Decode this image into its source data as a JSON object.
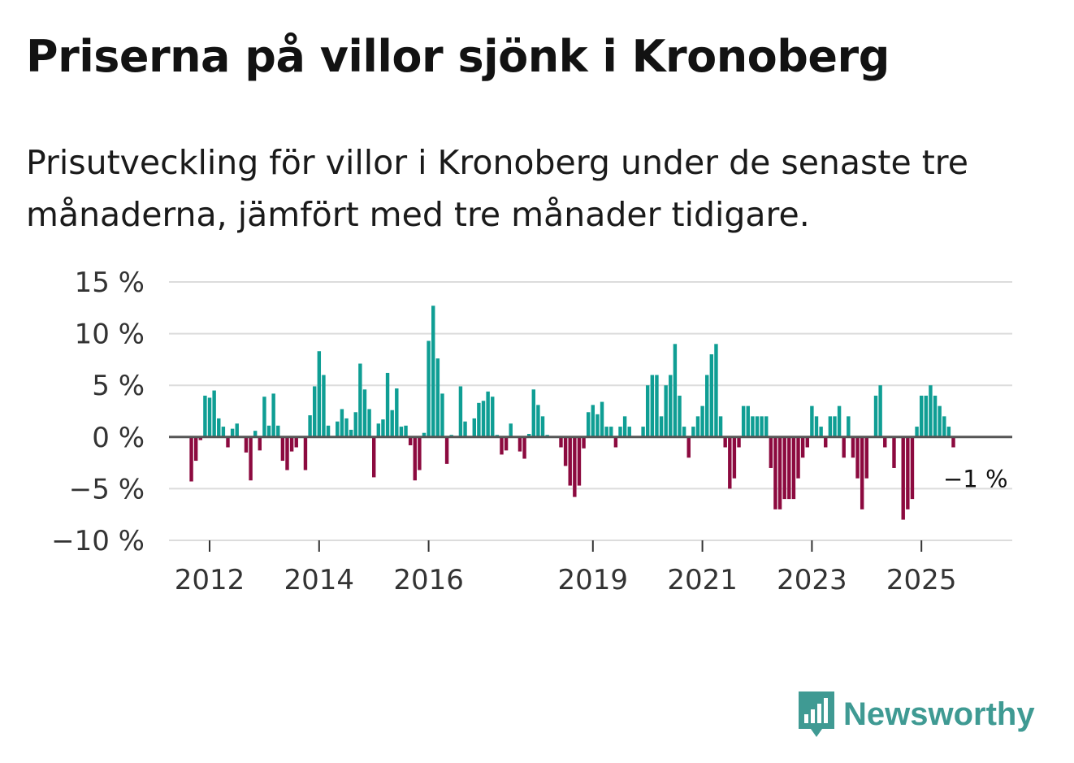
{
  "header": {
    "title": "Priserna på villor sjönk i Kronoberg",
    "subtitle": "Prisutveckling för villor i Kronoberg under de senaste tre månaderna, jämfört med tre månader tidigare."
  },
  "brand": {
    "name": "Newsworthy",
    "logo_icon": "bar-chart-badge-icon"
  },
  "colors": {
    "positive": "#0f9e94",
    "negative": "#8c0a3f",
    "grid": "#dcdcdc",
    "zero": "#555555",
    "brand": "#3f9a93"
  },
  "chart_data": {
    "type": "bar",
    "title": "Priserna på villor sjönk i Kronoberg",
    "xlabel": "",
    "ylabel": "",
    "ylim": [
      -10,
      15
    ],
    "yticks": [
      -10,
      -5,
      0,
      5,
      10,
      15
    ],
    "ytick_labels": [
      "−10 %",
      "−5 %",
      "0 %",
      "5 %",
      "10 %",
      "15 %"
    ],
    "xticks": [
      2012,
      2014,
      2016,
      2019,
      2021,
      2023,
      2025
    ],
    "xtick_labels": [
      "2012",
      "2014",
      "2016",
      "2019",
      "2021",
      "2023",
      "2025"
    ],
    "x_start": 2011.667,
    "x_step": 0.08333,
    "last_value_label": "−1 %",
    "values": [
      -4.3,
      -2.3,
      -0.3,
      4.0,
      3.8,
      4.5,
      1.8,
      1.0,
      -1.0,
      0.8,
      1.3,
      0.0,
      -1.5,
      -4.2,
      0.6,
      -1.3,
      3.9,
      1.1,
      4.2,
      1.1,
      -2.3,
      -3.2,
      -1.4,
      -1.0,
      0.0,
      -3.2,
      2.1,
      4.9,
      8.3,
      6.0,
      1.1,
      0.0,
      1.5,
      2.7,
      1.8,
      0.7,
      2.4,
      7.1,
      4.6,
      2.7,
      -3.9,
      1.3,
      1.7,
      6.2,
      2.6,
      4.7,
      1.0,
      1.1,
      -0.8,
      -4.2,
      -3.2,
      0.4,
      9.3,
      12.7,
      7.6,
      4.2,
      -2.6,
      0.2,
      0.0,
      4.9,
      1.5,
      0.0,
      1.8,
      3.3,
      3.5,
      4.4,
      3.9,
      0.2,
      -1.7,
      -1.3,
      1.3,
      0.0,
      -1.4,
      -2.1,
      0.3,
      4.6,
      3.1,
      2.0,
      0.2,
      0.1,
      0.0,
      -1.0,
      -2.8,
      -4.7,
      -5.8,
      -4.7,
      -1.1,
      2.4,
      3.1,
      2.2,
      3.4,
      1.0,
      1.0,
      -1.0,
      1.0,
      2.0,
      1.0,
      0.0,
      0.0,
      1.0,
      5.0,
      6.0,
      6.0,
      2.0,
      5.0,
      6.0,
      9.0,
      4.0,
      1.0,
      -2.0,
      1.0,
      2.0,
      3.0,
      6.0,
      8.0,
      9.0,
      2.0,
      -1.0,
      -5.0,
      -4.0,
      -1.0,
      3.0,
      3.0,
      2.0,
      2.0,
      2.0,
      2.0,
      -3.0,
      -7.0,
      -7.0,
      -6.0,
      -6.0,
      -6.0,
      -4.0,
      -2.0,
      -1.0,
      3.0,
      2.0,
      1.0,
      -1.0,
      2.0,
      2.0,
      3.0,
      -2.0,
      2.0,
      -2.0,
      -4.0,
      -7.0,
      -4.0,
      0.0,
      4.0,
      5.0,
      -1.0,
      0.0,
      -3.0,
      0.0,
      -8.0,
      -7.0,
      -6.0,
      1.0,
      4.0,
      4.0,
      5.0,
      4.0,
      3.0,
      2.0,
      1.0,
      -1.0
    ]
  }
}
